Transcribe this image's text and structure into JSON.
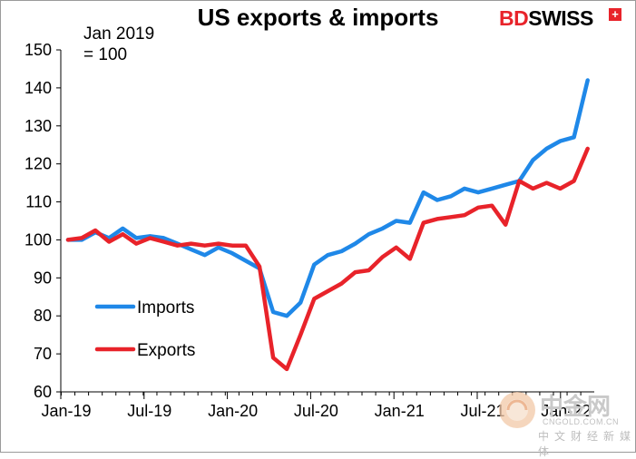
{
  "chart_data": {
    "type": "line",
    "title": "US exports & imports",
    "note": "Jan 2019\n= 100",
    "brand": {
      "bd": "BD",
      "rest": "SWISS",
      "flag": "+"
    },
    "watermark": {
      "cn": "中金网",
      "url": "CNGOLD.COM.CN",
      "sub": "中文财经新媒体"
    },
    "x_tick_labels": [
      "Jan-19",
      "Jul-19",
      "Jan-20",
      "Jul-20",
      "Jan-21",
      "Jul-21",
      "Jan-22"
    ],
    "y_tick_labels": [
      "60",
      "70",
      "80",
      "90",
      "100",
      "110",
      "120",
      "130",
      "140",
      "150"
    ],
    "ylim": [
      60,
      150
    ],
    "x": [
      "2019-01",
      "2019-02",
      "2019-03",
      "2019-04",
      "2019-05",
      "2019-06",
      "2019-07",
      "2019-08",
      "2019-09",
      "2019-10",
      "2019-11",
      "2019-12",
      "2020-01",
      "2020-02",
      "2020-03",
      "2020-04",
      "2020-05",
      "2020-06",
      "2020-07",
      "2020-08",
      "2020-09",
      "2020-10",
      "2020-11",
      "2020-12",
      "2021-01",
      "2021-02",
      "2021-03",
      "2021-04",
      "2021-05",
      "2021-06",
      "2021-07",
      "2021-08",
      "2021-09",
      "2021-10",
      "2021-11",
      "2021-12",
      "2022-01",
      "2022-02",
      "2022-03"
    ],
    "legend_position": "middle-left",
    "series": [
      {
        "name": "Imports",
        "color": "#1f88e8",
        "values": [
          100,
          100,
          102,
          100.5,
          103,
          100.5,
          101,
          100.5,
          99,
          97.5,
          96,
          98,
          96.5,
          94.5,
          92.5,
          81,
          80,
          83.5,
          93.5,
          96,
          97,
          99,
          101.5,
          103,
          105,
          104.5,
          112.5,
          110.5,
          111.5,
          113.5,
          112.5,
          113.5,
          114.5,
          115.5,
          121,
          124,
          126,
          127,
          142
        ]
      },
      {
        "name": "Exports",
        "color": "#e8232a",
        "values": [
          100,
          100.5,
          102.5,
          99.5,
          101.5,
          99,
          100.5,
          99.5,
          98.5,
          99,
          98.5,
          99,
          98.5,
          98.5,
          93,
          69,
          66,
          75,
          84.5,
          86.5,
          88.5,
          91.5,
          92,
          95.5,
          98,
          95,
          104.5,
          105.5,
          106,
          106.5,
          108.5,
          109,
          104,
          115.5,
          113.5,
          115,
          113.5,
          115.5,
          124
        ]
      }
    ]
  }
}
